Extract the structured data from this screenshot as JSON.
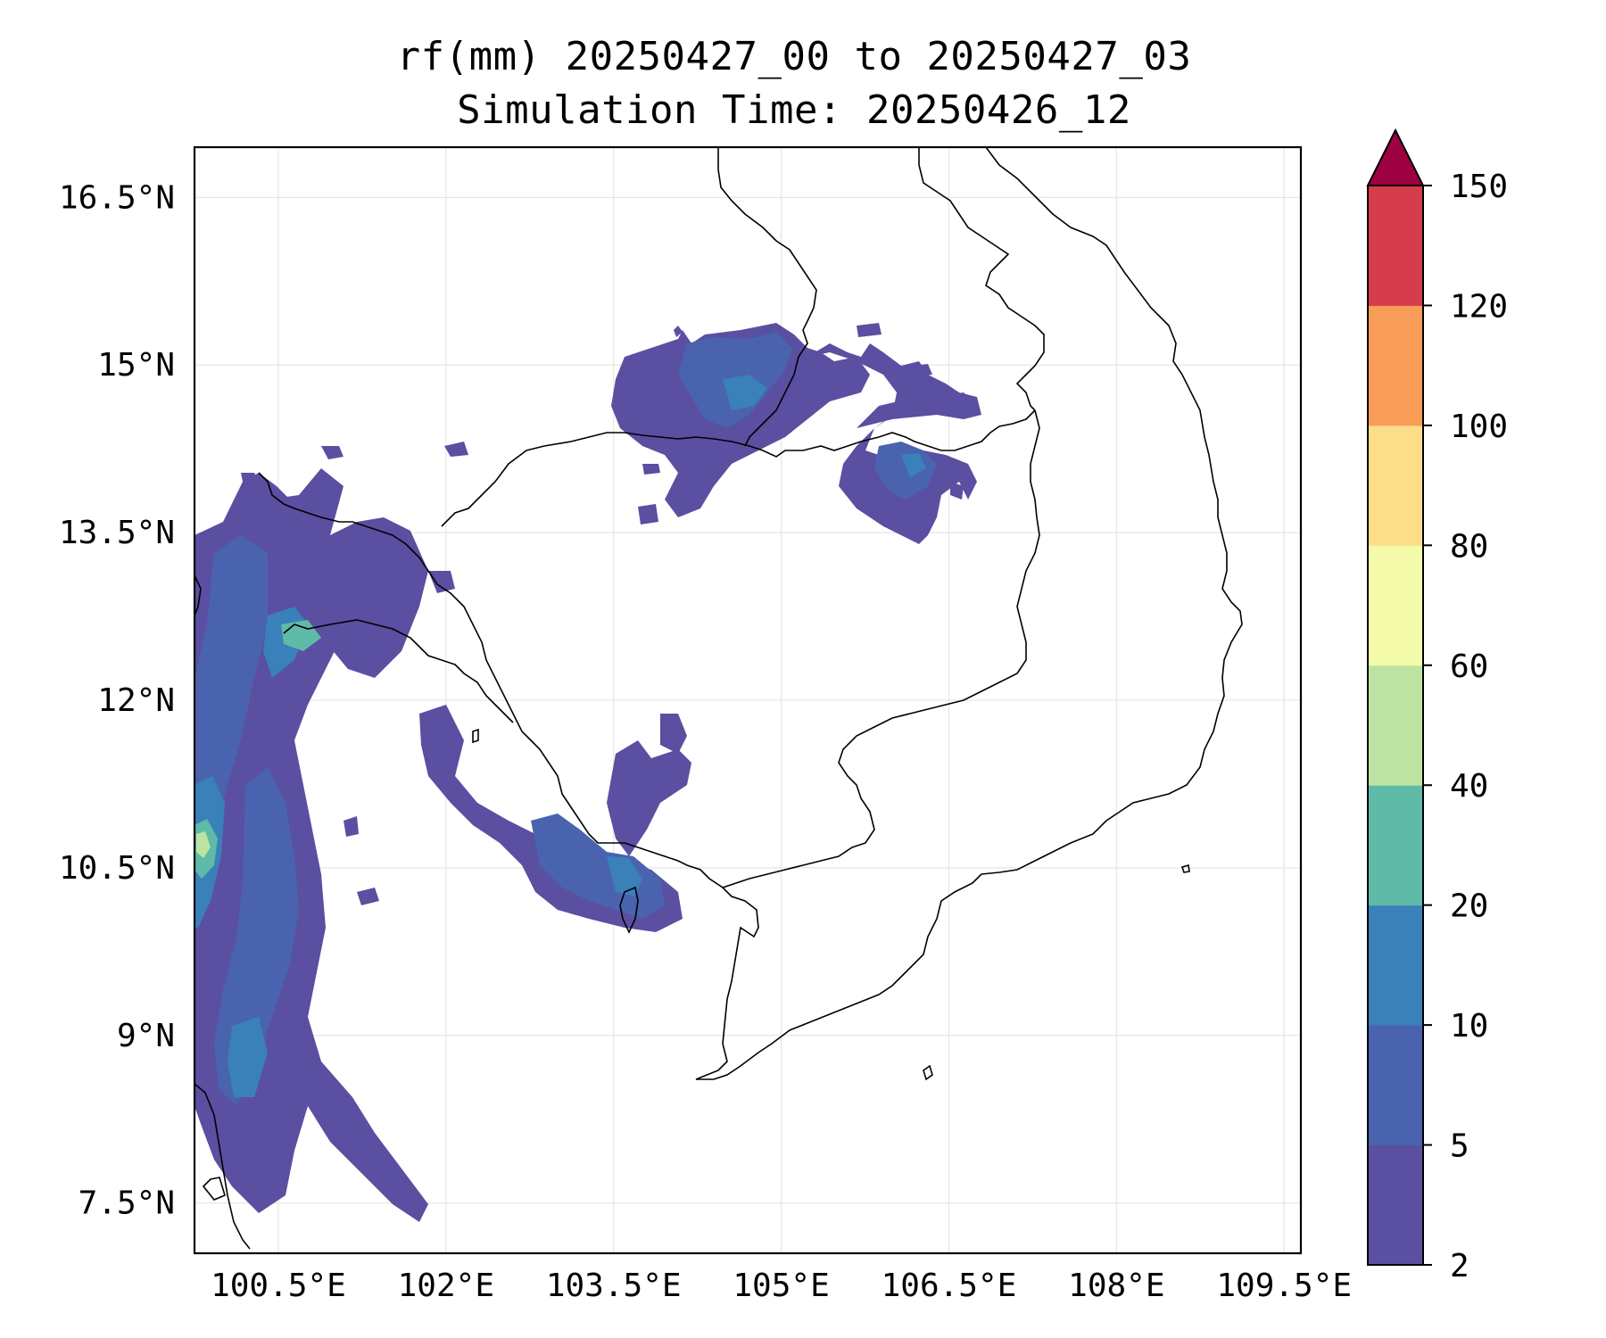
{
  "title": {
    "line1": "rf(mm) 20250427_00 to 20250427_03",
    "line2": "Simulation Time: 20250426_12"
  },
  "axes": {
    "lon_ticks": [
      "100.5°E",
      "102°E",
      "103.5°E",
      "105°E",
      "106.5°E",
      "108°E",
      "109.5°E"
    ],
    "lat_ticks": [
      "16.5°N",
      "15°N",
      "13.5°N",
      "12°N",
      "10.5°N",
      "9°N",
      "7.5°N"
    ],
    "lon_values": [
      100.5,
      102,
      103.5,
      105,
      106.5,
      108,
      109.5
    ],
    "lat_values": [
      16.5,
      15,
      13.5,
      12,
      10.5,
      9,
      7.5
    ],
    "xlim": [
      99.75,
      109.65
    ],
    "ylim": [
      7.05,
      16.95
    ],
    "grid": true
  },
  "colorbar": {
    "levels": [
      "2",
      "5",
      "10",
      "20",
      "40",
      "60",
      "80",
      "100",
      "120",
      "150"
    ],
    "colors": [
      "#5a4fa1",
      "#4a63ae",
      "#3a80b9",
      "#5fbaa8",
      "#bde3a3",
      "#f3fbab",
      "#fcde8a",
      "#f99c58",
      "#d53d4d",
      "#9e0142"
    ],
    "extend": "max"
  }
}
